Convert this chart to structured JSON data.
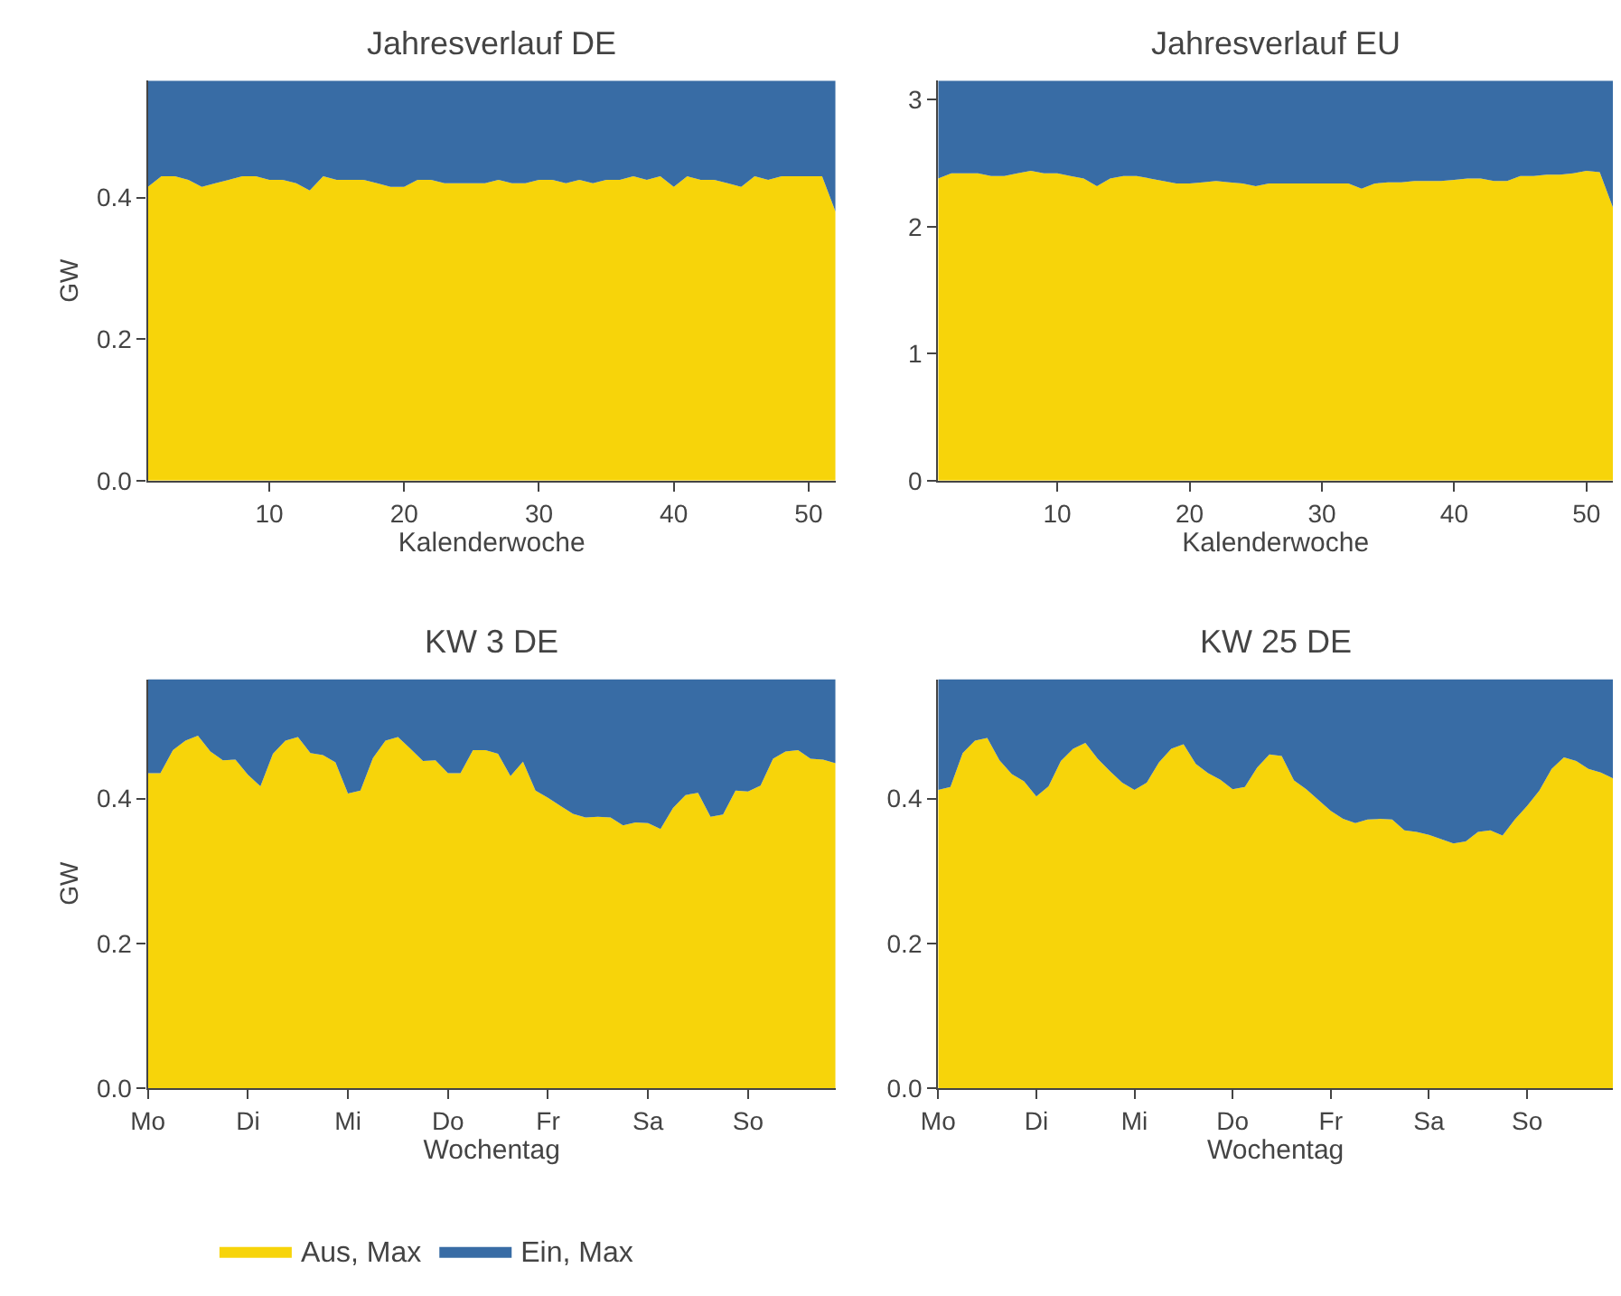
{
  "chart_data": [
    {
      "type": "area",
      "stacked": true,
      "title": "Jahresverlauf DE",
      "xlabel": "Kalenderwoche",
      "ylabel": "GW",
      "legend": "bottom",
      "xlim": [
        1,
        52
      ],
      "xticks": [
        10,
        20,
        30,
        40,
        50
      ],
      "ylim": [
        0,
        0.565
      ],
      "yticks": [
        {
          "value": 0,
          "label": "0.0"
        },
        {
          "value": 0.2,
          "label": "0.2"
        },
        {
          "value": 0.4,
          "label": "0.4"
        }
      ],
      "x": [
        1,
        2,
        3,
        4,
        5,
        6,
        7,
        8,
        9,
        10,
        11,
        12,
        13,
        14,
        15,
        16,
        17,
        18,
        19,
        20,
        21,
        22,
        23,
        24,
        25,
        26,
        27,
        28,
        29,
        30,
        31,
        32,
        33,
        34,
        35,
        36,
        37,
        38,
        39,
        40,
        41,
        42,
        43,
        44,
        45,
        46,
        47,
        48,
        49,
        50,
        51,
        52
      ],
      "series": [
        {
          "name": "Aus, Max",
          "color": "#f7d40a",
          "values": [
            0.415,
            0.43,
            0.43,
            0.425,
            0.415,
            0.42,
            0.425,
            0.43,
            0.43,
            0.425,
            0.425,
            0.42,
            0.41,
            0.43,
            0.425,
            0.425,
            0.425,
            0.42,
            0.415,
            0.415,
            0.425,
            0.425,
            0.42,
            0.42,
            0.42,
            0.42,
            0.425,
            0.42,
            0.42,
            0.425,
            0.425,
            0.42,
            0.425,
            0.42,
            0.425,
            0.425,
            0.43,
            0.425,
            0.43,
            0.415,
            0.43,
            0.425,
            0.425,
            0.42,
            0.415,
            0.43,
            0.425,
            0.43,
            0.43,
            0.43,
            0.43,
            0.38
          ]
        },
        {
          "name": "Ein, Max",
          "color": "#386ca5",
          "values": [
            0.15,
            0.135,
            0.135,
            0.14,
            0.15,
            0.145,
            0.14,
            0.135,
            0.135,
            0.14,
            0.14,
            0.145,
            0.155,
            0.135,
            0.14,
            0.14,
            0.14,
            0.145,
            0.15,
            0.15,
            0.14,
            0.14,
            0.145,
            0.145,
            0.145,
            0.145,
            0.14,
            0.145,
            0.145,
            0.14,
            0.14,
            0.145,
            0.14,
            0.145,
            0.14,
            0.14,
            0.135,
            0.14,
            0.135,
            0.15,
            0.135,
            0.14,
            0.14,
            0.145,
            0.15,
            0.135,
            0.14,
            0.135,
            0.135,
            0.135,
            0.135,
            0.185
          ]
        }
      ]
    },
    {
      "type": "area",
      "stacked": true,
      "title": "Jahresverlauf EU",
      "xlabel": "Kalenderwoche",
      "xlim": [
        1,
        52
      ],
      "xticks": [
        10,
        20,
        30,
        40,
        50
      ],
      "ylim": [
        0,
        3.15
      ],
      "yticks": [
        0,
        1,
        2,
        3
      ],
      "x": [
        1,
        2,
        3,
        4,
        5,
        6,
        7,
        8,
        9,
        10,
        11,
        12,
        13,
        14,
        15,
        16,
        17,
        18,
        19,
        20,
        21,
        22,
        23,
        24,
        25,
        26,
        27,
        28,
        29,
        30,
        31,
        32,
        33,
        34,
        35,
        36,
        37,
        38,
        39,
        40,
        41,
        42,
        43,
        44,
        45,
        46,
        47,
        48,
        49,
        50,
        51,
        52
      ],
      "series": [
        {
          "color": "#f7d40a",
          "values": [
            2.38,
            2.42,
            2.42,
            2.42,
            2.4,
            2.4,
            2.42,
            2.44,
            2.42,
            2.42,
            2.4,
            2.38,
            2.32,
            2.38,
            2.4,
            2.4,
            2.38,
            2.36,
            2.34,
            2.34,
            2.35,
            2.36,
            2.35,
            2.34,
            2.32,
            2.34,
            2.34,
            2.34,
            2.34,
            2.34,
            2.34,
            2.34,
            2.3,
            2.34,
            2.35,
            2.35,
            2.36,
            2.36,
            2.36,
            2.37,
            2.38,
            2.38,
            2.36,
            2.36,
            2.4,
            2.4,
            2.41,
            2.41,
            2.42,
            2.44,
            2.43,
            2.15
          ]
        },
        {
          "color": "#386ca5",
          "values": [
            0.77,
            0.73,
            0.73,
            0.73,
            0.75,
            0.75,
            0.73,
            0.71,
            0.73,
            0.73,
            0.75,
            0.77,
            0.83,
            0.77,
            0.75,
            0.75,
            0.77,
            0.79,
            0.81,
            0.81,
            0.8,
            0.79,
            0.8,
            0.81,
            0.83,
            0.81,
            0.81,
            0.81,
            0.81,
            0.81,
            0.81,
            0.81,
            0.85,
            0.81,
            0.8,
            0.8,
            0.79,
            0.79,
            0.79,
            0.78,
            0.77,
            0.77,
            0.79,
            0.79,
            0.75,
            0.75,
            0.74,
            0.74,
            0.73,
            0.71,
            0.72,
            1.0
          ]
        }
      ]
    },
    {
      "type": "area",
      "stacked": true,
      "title": "KW 3 DE",
      "xlabel": "Wochentag",
      "ylabel": "GW",
      "ylim": [
        0,
        0.565
      ],
      "yticks": [
        {
          "value": 0,
          "label": "0.0"
        },
        {
          "value": 0.2,
          "label": "0.2"
        },
        {
          "value": 0.4,
          "label": "0.4"
        }
      ],
      "categories": [
        "Mo",
        null,
        null,
        null,
        null,
        null,
        null,
        null,
        "Di",
        null,
        null,
        null,
        null,
        null,
        null,
        null,
        "Mi",
        null,
        null,
        null,
        null,
        null,
        null,
        null,
        "Do",
        null,
        null,
        null,
        null,
        null,
        null,
        null,
        "Fr",
        null,
        null,
        null,
        null,
        null,
        null,
        null,
        "Sa",
        null,
        null,
        null,
        null,
        null,
        null,
        null,
        "So",
        null,
        null,
        null,
        null,
        null,
        null,
        null
      ],
      "series": [
        {
          "color": "#f7d40a",
          "values": [
            0.435,
            0.435,
            0.467,
            0.48,
            0.487,
            0.465,
            0.453,
            0.454,
            0.433,
            0.417,
            0.462,
            0.48,
            0.485,
            0.463,
            0.46,
            0.45,
            0.407,
            0.411,
            0.456,
            0.48,
            0.485,
            0.469,
            0.452,
            0.453,
            0.435,
            0.435,
            0.467,
            0.467,
            0.462,
            0.431,
            0.451,
            0.411,
            0.401,
            0.39,
            0.379,
            0.374,
            0.375,
            0.374,
            0.363,
            0.367,
            0.366,
            0.358,
            0.387,
            0.405,
            0.408,
            0.375,
            0.378,
            0.411,
            0.41,
            0.418,
            0.455,
            0.465,
            0.467,
            0.455,
            0.454,
            0.449
          ]
        },
        {
          "color": "#386ca5",
          "values": [
            0.13,
            0.13,
            0.098,
            0.085,
            0.078,
            0.1,
            0.112,
            0.111,
            0.132,
            0.148,
            0.103,
            0.085,
            0.08,
            0.102,
            0.105,
            0.115,
            0.158,
            0.154,
            0.109,
            0.085,
            0.08,
            0.096,
            0.113,
            0.112,
            0.13,
            0.13,
            0.098,
            0.098,
            0.103,
            0.134,
            0.114,
            0.154,
            0.164,
            0.175,
            0.186,
            0.191,
            0.19,
            0.191,
            0.202,
            0.198,
            0.199,
            0.207,
            0.178,
            0.16,
            0.157,
            0.19,
            0.187,
            0.154,
            0.155,
            0.147,
            0.11,
            0.1,
            0.098,
            0.11,
            0.111,
            0.116
          ]
        }
      ]
    },
    {
      "type": "area",
      "stacked": true,
      "title": "KW 25 DE",
      "xlabel": "Wochentag",
      "ylim": [
        0,
        0.565
      ],
      "yticks": [
        {
          "value": 0,
          "label": "0.0"
        },
        {
          "value": 0.2,
          "label": "0.2"
        },
        {
          "value": 0.4,
          "label": "0.4"
        }
      ],
      "categories": [
        "Mo",
        null,
        null,
        null,
        null,
        null,
        null,
        null,
        "Di",
        null,
        null,
        null,
        null,
        null,
        null,
        null,
        "Mi",
        null,
        null,
        null,
        null,
        null,
        null,
        null,
        "Do",
        null,
        null,
        null,
        null,
        null,
        null,
        null,
        "Fr",
        null,
        null,
        null,
        null,
        null,
        null,
        null,
        "Sa",
        null,
        null,
        null,
        null,
        null,
        null,
        null,
        "So",
        null,
        null,
        null,
        null,
        null,
        null,
        null
      ],
      "series": [
        {
          "color": "#f7d40a",
          "values": [
            0.412,
            0.416,
            0.463,
            0.48,
            0.484,
            0.453,
            0.434,
            0.424,
            0.403,
            0.417,
            0.452,
            0.469,
            0.477,
            0.455,
            0.438,
            0.422,
            0.412,
            0.422,
            0.45,
            0.469,
            0.475,
            0.448,
            0.435,
            0.426,
            0.413,
            0.416,
            0.443,
            0.461,
            0.459,
            0.425,
            0.413,
            0.398,
            0.383,
            0.372,
            0.366,
            0.371,
            0.372,
            0.371,
            0.356,
            0.354,
            0.35,
            0.344,
            0.338,
            0.341,
            0.354,
            0.356,
            0.349,
            0.371,
            0.39,
            0.411,
            0.441,
            0.457,
            0.452,
            0.441,
            0.436,
            0.428
          ]
        },
        {
          "color": "#386ca5",
          "values": [
            0.153,
            0.149,
            0.102,
            0.085,
            0.081,
            0.112,
            0.131,
            0.141,
            0.162,
            0.148,
            0.113,
            0.096,
            0.088,
            0.11,
            0.127,
            0.143,
            0.153,
            0.143,
            0.115,
            0.096,
            0.09,
            0.117,
            0.13,
            0.139,
            0.152,
            0.149,
            0.122,
            0.104,
            0.106,
            0.14,
            0.152,
            0.167,
            0.182,
            0.193,
            0.199,
            0.194,
            0.193,
            0.194,
            0.209,
            0.211,
            0.215,
            0.221,
            0.227,
            0.224,
            0.211,
            0.209,
            0.216,
            0.194,
            0.175,
            0.154,
            0.124,
            0.108,
            0.113,
            0.124,
            0.129,
            0.137
          ]
        }
      ]
    }
  ]
}
